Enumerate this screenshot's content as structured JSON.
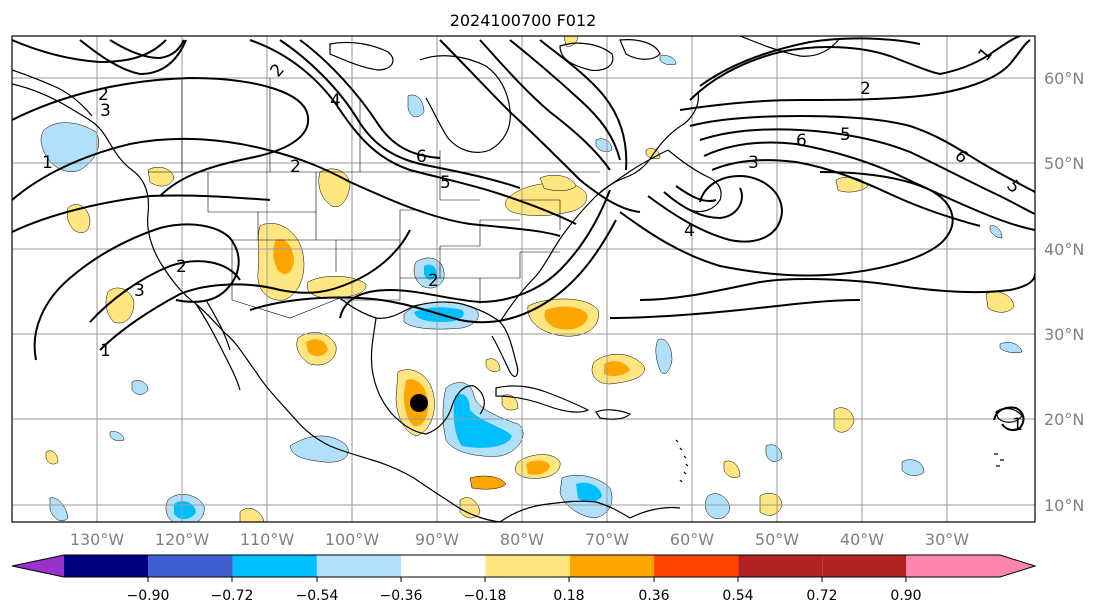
{
  "title": "2024100700 F012",
  "map": {
    "lat_labels": [
      "60°N",
      "50°N",
      "40°N",
      "30°N",
      "20°N",
      "10°N"
    ],
    "lon_labels": [
      "130°W",
      "120°W",
      "110°W",
      "100°W",
      "90°W",
      "80°W",
      "70°W",
      "60°W",
      "50°W",
      "40°W",
      "30°W"
    ],
    "contour_labels": [
      "2",
      "2",
      "6",
      "5",
      "6",
      "3",
      "4",
      "5",
      "2",
      "1",
      "6",
      "2",
      "3",
      "1",
      "1",
      "5",
      "4",
      "2",
      "3",
      "2",
      "1"
    ],
    "marker": "storm-center-dot"
  },
  "colorbar": {
    "labels": [
      "−0.90",
      "−0.72",
      "−0.54",
      "−0.36",
      "−0.18",
      "0.18",
      "0.36",
      "0.54",
      "0.72",
      "0.90"
    ],
    "colors": [
      "#9932cc",
      "#000080",
      "#3f5fcf",
      "#00bfff",
      "#b0e0fa",
      "#ffffff",
      "#ffe680",
      "#ffa500",
      "#ff4500",
      "#b22222",
      "#ff85b0"
    ],
    "levels": [
      -0.9,
      -0.72,
      -0.54,
      -0.36,
      -0.18,
      0.18,
      0.36,
      0.54,
      0.72,
      0.9
    ]
  }
}
